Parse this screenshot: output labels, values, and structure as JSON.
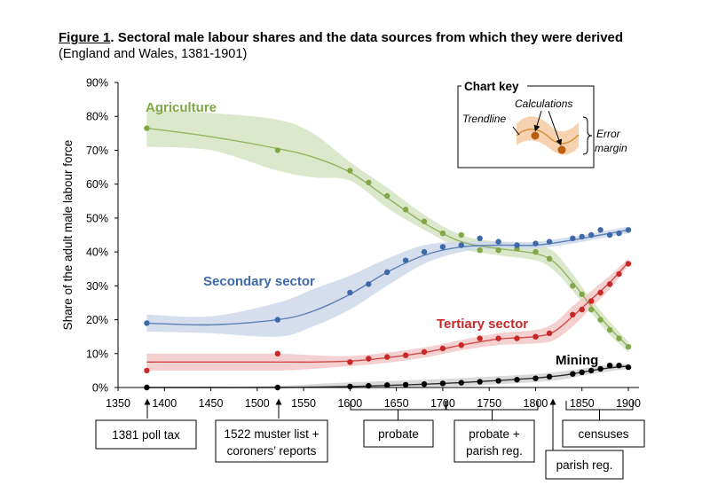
{
  "figure": {
    "number_label": "Figure 1",
    "title_rest": ". Sectoral male labour shares and the data sources from which they were derived",
    "subtitle": "(England and Wales, 1381-1901)"
  },
  "chart_data": {
    "type": "line",
    "ylabel": "Share of the adult male labour force",
    "xlim": [
      1350,
      1900
    ],
    "ylim": [
      0,
      90
    ],
    "x_ticks": [
      1350,
      1400,
      1450,
      1500,
      1550,
      1600,
      1650,
      1700,
      1750,
      1800,
      1850,
      1900
    ],
    "y_ticks": [
      0,
      10,
      20,
      30,
      40,
      50,
      60,
      70,
      80,
      90
    ],
    "y_tick_suffix": "%",
    "grid": false,
    "series": [
      {
        "name": "Agriculture",
        "color": "#80a848",
        "band": "#d6e4c2",
        "points": [
          [
            1381,
            76.5
          ],
          [
            1522,
            70
          ],
          [
            1600,
            64
          ],
          [
            1620,
            60.5
          ],
          [
            1640,
            56.5
          ],
          [
            1660,
            52.5
          ],
          [
            1680,
            49
          ],
          [
            1700,
            45.5
          ],
          [
            1720,
            45
          ],
          [
            1740,
            40.5
          ],
          [
            1760,
            40.5
          ],
          [
            1780,
            41
          ],
          [
            1800,
            40
          ],
          [
            1815,
            38
          ],
          [
            1840,
            30
          ],
          [
            1850,
            27.5
          ],
          [
            1860,
            23
          ],
          [
            1870,
            20
          ],
          [
            1880,
            17
          ],
          [
            1890,
            14.5
          ],
          [
            1900,
            12
          ]
        ],
        "trend": [
          [
            1381,
            76.5
          ],
          [
            1450,
            74
          ],
          [
            1522,
            70.5
          ],
          [
            1560,
            68
          ],
          [
            1600,
            63.5
          ],
          [
            1640,
            56
          ],
          [
            1680,
            48.5
          ],
          [
            1720,
            43
          ],
          [
            1760,
            41
          ],
          [
            1800,
            39.5
          ],
          [
            1820,
            37
          ],
          [
            1840,
            31
          ],
          [
            1860,
            24
          ],
          [
            1880,
            17.5
          ],
          [
            1900,
            12
          ]
        ],
        "band_upper": [
          [
            1381,
            82
          ],
          [
            1450,
            81
          ],
          [
            1522,
            79
          ],
          [
            1560,
            75
          ],
          [
            1600,
            66.5
          ],
          [
            1640,
            59
          ],
          [
            1680,
            51
          ],
          [
            1720,
            45
          ],
          [
            1760,
            43
          ],
          [
            1800,
            42
          ],
          [
            1820,
            40
          ],
          [
            1840,
            33.5
          ],
          [
            1860,
            26
          ],
          [
            1880,
            19.5
          ],
          [
            1900,
            13.5
          ]
        ],
        "band_lower": [
          [
            1381,
            71
          ],
          [
            1450,
            70
          ],
          [
            1522,
            64
          ],
          [
            1560,
            62
          ],
          [
            1600,
            61
          ],
          [
            1640,
            53
          ],
          [
            1680,
            46.5
          ],
          [
            1720,
            41
          ],
          [
            1760,
            39
          ],
          [
            1800,
            37.5
          ],
          [
            1820,
            34.5
          ],
          [
            1840,
            28.5
          ],
          [
            1860,
            22
          ],
          [
            1880,
            15.5
          ],
          [
            1900,
            10.5
          ]
        ]
      },
      {
        "name": "Secondary sector",
        "color": "#3e68a8",
        "band": "#ccd8ea",
        "points": [
          [
            1381,
            19
          ],
          [
            1522,
            20
          ],
          [
            1600,
            28
          ],
          [
            1620,
            30.5
          ],
          [
            1640,
            34
          ],
          [
            1660,
            37.5
          ],
          [
            1680,
            40
          ],
          [
            1700,
            41.5
          ],
          [
            1720,
            42
          ],
          [
            1740,
            44
          ],
          [
            1760,
            43
          ],
          [
            1780,
            42
          ],
          [
            1800,
            42.5
          ],
          [
            1815,
            43
          ],
          [
            1840,
            44
          ],
          [
            1850,
            44.5
          ],
          [
            1860,
            45
          ],
          [
            1870,
            46.5
          ],
          [
            1880,
            45
          ],
          [
            1890,
            45.5
          ],
          [
            1900,
            46.5
          ]
        ],
        "trend": [
          [
            1381,
            19
          ],
          [
            1450,
            18.5
          ],
          [
            1522,
            20
          ],
          [
            1560,
            22.5
          ],
          [
            1600,
            27.5
          ],
          [
            1640,
            34
          ],
          [
            1680,
            39
          ],
          [
            1720,
            41.5
          ],
          [
            1760,
            42
          ],
          [
            1800,
            42
          ],
          [
            1840,
            43.5
          ],
          [
            1870,
            45
          ],
          [
            1900,
            46.5
          ]
        ],
        "band_upper": [
          [
            1381,
            21.5
          ],
          [
            1450,
            21
          ],
          [
            1522,
            25
          ],
          [
            1560,
            29
          ],
          [
            1600,
            33
          ],
          [
            1640,
            38
          ],
          [
            1680,
            42
          ],
          [
            1720,
            43
          ],
          [
            1760,
            43
          ],
          [
            1800,
            43
          ],
          [
            1840,
            44.5
          ],
          [
            1870,
            46
          ],
          [
            1900,
            47.5
          ]
        ],
        "band_lower": [
          [
            1381,
            16.5
          ],
          [
            1450,
            16
          ],
          [
            1522,
            15
          ],
          [
            1560,
            18
          ],
          [
            1600,
            23
          ],
          [
            1640,
            30
          ],
          [
            1680,
            36.5
          ],
          [
            1720,
            40
          ],
          [
            1760,
            41
          ],
          [
            1800,
            41
          ],
          [
            1840,
            42.5
          ],
          [
            1870,
            44
          ],
          [
            1900,
            45.5
          ]
        ]
      },
      {
        "name": "Tertiary sector",
        "color": "#c82828",
        "band": "#f2c8c8",
        "points": [
          [
            1381,
            5
          ],
          [
            1522,
            10
          ],
          [
            1600,
            7.5
          ],
          [
            1620,
            8.5
          ],
          [
            1640,
            9
          ],
          [
            1660,
            9.5
          ],
          [
            1680,
            10.5
          ],
          [
            1700,
            11.5
          ],
          [
            1720,
            12.5
          ],
          [
            1740,
            14.5
          ],
          [
            1760,
            14.5
          ],
          [
            1780,
            14.5
          ],
          [
            1800,
            15
          ],
          [
            1815,
            16
          ],
          [
            1840,
            21.5
          ],
          [
            1850,
            23
          ],
          [
            1860,
            25.5
          ],
          [
            1870,
            28
          ],
          [
            1880,
            30.5
          ],
          [
            1890,
            33.5
          ],
          [
            1900,
            36.5
          ]
        ],
        "trend": [
          [
            1381,
            7.5
          ],
          [
            1450,
            7.5
          ],
          [
            1522,
            7.5
          ],
          [
            1560,
            7.5
          ],
          [
            1600,
            7.8
          ],
          [
            1640,
            8.8
          ],
          [
            1680,
            10.3
          ],
          [
            1720,
            12.5
          ],
          [
            1760,
            14.3
          ],
          [
            1800,
            15
          ],
          [
            1820,
            16.5
          ],
          [
            1840,
            21
          ],
          [
            1860,
            26
          ],
          [
            1880,
            31
          ],
          [
            1900,
            37
          ]
        ],
        "band_upper": [
          [
            1381,
            10
          ],
          [
            1450,
            10
          ],
          [
            1522,
            10
          ],
          [
            1560,
            9.5
          ],
          [
            1600,
            9.3
          ],
          [
            1640,
            10.3
          ],
          [
            1680,
            11.8
          ],
          [
            1720,
            14
          ],
          [
            1760,
            16
          ],
          [
            1800,
            17
          ],
          [
            1820,
            19
          ],
          [
            1840,
            24
          ],
          [
            1860,
            28.5
          ],
          [
            1880,
            33
          ],
          [
            1900,
            38
          ]
        ],
        "band_lower": [
          [
            1381,
            5
          ],
          [
            1450,
            5
          ],
          [
            1522,
            5
          ],
          [
            1560,
            5.5
          ],
          [
            1600,
            6.3
          ],
          [
            1640,
            7.3
          ],
          [
            1680,
            8.8
          ],
          [
            1720,
            11
          ],
          [
            1760,
            12.5
          ],
          [
            1800,
            13
          ],
          [
            1820,
            14
          ],
          [
            1840,
            18
          ],
          [
            1860,
            23.5
          ],
          [
            1880,
            29
          ],
          [
            1900,
            36
          ]
        ]
      },
      {
        "name": "Mining",
        "color": "#000000",
        "band": "#d4d4d4",
        "points": [
          [
            1381,
            0
          ],
          [
            1522,
            0
          ],
          [
            1600,
            0.3
          ],
          [
            1620,
            0.5
          ],
          [
            1640,
            0.7
          ],
          [
            1660,
            0.8
          ],
          [
            1680,
            1
          ],
          [
            1700,
            1.2
          ],
          [
            1720,
            1.4
          ],
          [
            1740,
            1.7
          ],
          [
            1760,
            2
          ],
          [
            1780,
            2.3
          ],
          [
            1800,
            2.7
          ],
          [
            1815,
            3.2
          ],
          [
            1840,
            4
          ],
          [
            1850,
            4.5
          ],
          [
            1860,
            5
          ],
          [
            1870,
            5.5
          ],
          [
            1880,
            6.5
          ],
          [
            1890,
            6.5
          ],
          [
            1900,
            6
          ]
        ],
        "trend": [
          [
            1381,
            0
          ],
          [
            1450,
            0
          ],
          [
            1522,
            0
          ],
          [
            1560,
            0.1
          ],
          [
            1600,
            0.3
          ],
          [
            1650,
            0.7
          ],
          [
            1700,
            1.2
          ],
          [
            1750,
            1.9
          ],
          [
            1800,
            2.8
          ],
          [
            1830,
            3.6
          ],
          [
            1860,
            5
          ],
          [
            1880,
            5.8
          ],
          [
            1900,
            6.3
          ]
        ],
        "band_upper": [
          [
            1381,
            0
          ],
          [
            1450,
            0.2
          ],
          [
            1522,
            0.5
          ],
          [
            1560,
            1
          ],
          [
            1600,
            1.5
          ],
          [
            1650,
            2
          ],
          [
            1700,
            2.5
          ],
          [
            1750,
            3.2
          ],
          [
            1800,
            4
          ],
          [
            1830,
            4.8
          ],
          [
            1860,
            6
          ],
          [
            1880,
            6.8
          ],
          [
            1900,
            7
          ]
        ],
        "band_lower": [
          [
            1381,
            0
          ],
          [
            1450,
            0
          ],
          [
            1522,
            0
          ],
          [
            1560,
            0
          ],
          [
            1600,
            0
          ],
          [
            1650,
            0
          ],
          [
            1700,
            0.3
          ],
          [
            1750,
            0.8
          ],
          [
            1800,
            1.6
          ],
          [
            1830,
            2.4
          ],
          [
            1860,
            4
          ],
          [
            1880,
            4.8
          ],
          [
            1900,
            5.5
          ]
        ]
      }
    ],
    "series_labels": {
      "agriculture": "Agriculture",
      "secondary": "Secondary sector",
      "tertiary": "Tertiary sector",
      "mining": "Mining"
    },
    "sources": {
      "poll_tax": "1381 poll tax",
      "muster_line1": "1522 muster list +",
      "muster_line2": "coroners’ reports",
      "probate": "probate",
      "probate_parish_line1": "probate +",
      "probate_parish_line2": "parish reg.",
      "parish": "parish reg.",
      "censuses": "censuses"
    },
    "key": {
      "title": "Chart key",
      "trendline": "Trendline",
      "calculations": "Calculations",
      "error_line1": "Error",
      "error_line2": "margin"
    }
  }
}
